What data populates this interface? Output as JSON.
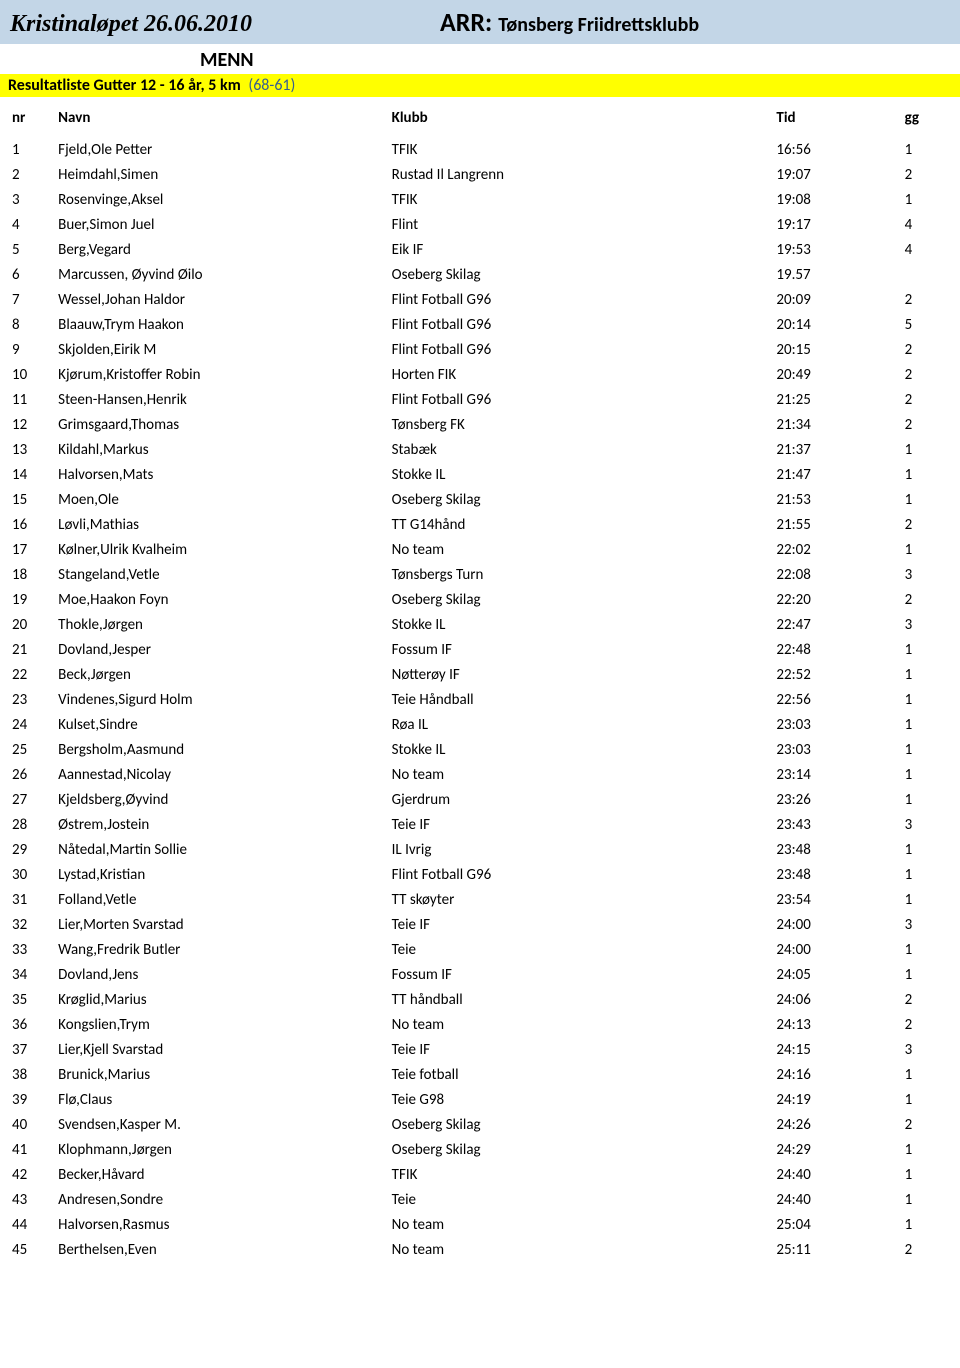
{
  "header": {
    "event_title": "Kristinaløpet 26.06.2010",
    "arr_label": "ARR:",
    "arr_value": "Tønsberg Friidrettsklubb"
  },
  "gender": "MENN",
  "category": {
    "name": "Resultatliste Gutter 12 - 16 år, 5 km",
    "range": "(68-61)"
  },
  "columns": {
    "nr": "nr",
    "name": "Navn",
    "club": "Klubb",
    "time": "Tid",
    "gg": "gg"
  },
  "rows": [
    {
      "nr": "1",
      "name": "Fjeld,Ole Petter",
      "club": "TFIK",
      "time": "16:56",
      "gg": "1"
    },
    {
      "nr": "2",
      "name": "Heimdahl,Simen",
      "club": "Rustad Il Langrenn",
      "time": "19:07",
      "gg": "2"
    },
    {
      "nr": "3",
      "name": "Rosenvinge,Aksel",
      "club": "TFIK",
      "time": "19:08",
      "gg": "1"
    },
    {
      "nr": "4",
      "name": "Buer,Simon Juel",
      "club": "Flint",
      "time": "19:17",
      "gg": "4"
    },
    {
      "nr": "5",
      "name": "Berg,Vegard",
      "club": "Eik IF",
      "time": "19:53",
      "gg": "4"
    },
    {
      "nr": "6",
      "name": "Marcussen, Øyvind Øilo",
      "club": "Oseberg Skilag",
      "time": "19.57",
      "gg": ""
    },
    {
      "nr": "7",
      "name": "Wessel,Johan Haldor",
      "club": "Flint Fotball G96",
      "time": "20:09",
      "gg": "2"
    },
    {
      "nr": "8",
      "name": "Blaauw,Trym Haakon",
      "club": "Flint Fotball G96",
      "time": "20:14",
      "gg": "5"
    },
    {
      "nr": "9",
      "name": "Skjolden,Eirik M",
      "club": "Flint Fotball G96",
      "time": "20:15",
      "gg": "2"
    },
    {
      "nr": "10",
      "name": "Kjørum,Kristoffer Robin",
      "club": "Horten FIK",
      "time": "20:49",
      "gg": "2"
    },
    {
      "nr": "11",
      "name": "Steen-Hansen,Henrik",
      "club": "Flint Fotball G96",
      "time": "21:25",
      "gg": "2"
    },
    {
      "nr": "12",
      "name": "Grimsgaard,Thomas",
      "club": "Tønsberg FK",
      "time": "21:34",
      "gg": "2"
    },
    {
      "nr": "13",
      "name": "Kildahl,Markus",
      "club": "Stabæk",
      "time": "21:37",
      "gg": "1"
    },
    {
      "nr": "14",
      "name": "Halvorsen,Mats",
      "club": "Stokke IL",
      "time": "21:47",
      "gg": "1"
    },
    {
      "nr": "15",
      "name": "Moen,Ole",
      "club": "Oseberg Skilag",
      "time": "21:53",
      "gg": "1"
    },
    {
      "nr": "16",
      "name": "Løvli,Mathias",
      "club": "TT G14hånd",
      "time": "21:55",
      "gg": "2"
    },
    {
      "nr": "17",
      "name": "Kølner,Ulrik Kvalheim",
      "club": "No team",
      "time": "22:02",
      "gg": "1"
    },
    {
      "nr": "18",
      "name": "Stangeland,Vetle",
      "club": "Tønsbergs Turn",
      "time": "22:08",
      "gg": "3"
    },
    {
      "nr": "19",
      "name": "Moe,Haakon Foyn",
      "club": "Oseberg Skilag",
      "time": "22:20",
      "gg": "2"
    },
    {
      "nr": "20",
      "name": "Thokle,Jørgen",
      "club": "Stokke IL",
      "time": "22:47",
      "gg": "3"
    },
    {
      "nr": "21",
      "name": "Dovland,Jesper",
      "club": "Fossum IF",
      "time": "22:48",
      "gg": "1"
    },
    {
      "nr": "22",
      "name": "Beck,Jørgen",
      "club": "Nøtterøy IF",
      "time": "22:52",
      "gg": "1"
    },
    {
      "nr": "23",
      "name": "Vindenes,Sigurd Holm",
      "club": "Teie Håndball",
      "time": "22:56",
      "gg": "1"
    },
    {
      "nr": "24",
      "name": "Kulset,Sindre",
      "club": "Røa IL",
      "time": "23:03",
      "gg": "1"
    },
    {
      "nr": "25",
      "name": "Bergsholm,Aasmund",
      "club": "Stokke IL",
      "time": "23:03",
      "gg": "1"
    },
    {
      "nr": "26",
      "name": "Aannestad,Nicolay",
      "club": "No team",
      "time": "23:14",
      "gg": "1"
    },
    {
      "nr": "27",
      "name": "Kjeldsberg,Øyvind",
      "club": "Gjerdrum",
      "time": "23:26",
      "gg": "1"
    },
    {
      "nr": "28",
      "name": "Østrem,Jostein",
      "club": "Teie IF",
      "time": "23:43",
      "gg": "3"
    },
    {
      "nr": "29",
      "name": "Nåtedal,Martin Sollie",
      "club": "IL Ivrig",
      "time": "23:48",
      "gg": "1"
    },
    {
      "nr": "30",
      "name": "Lystad,Kristian",
      "club": "Flint Fotball G96",
      "time": "23:48",
      "gg": "1"
    },
    {
      "nr": "31",
      "name": "Folland,Vetle",
      "club": "TT skøyter",
      "time": "23:54",
      "gg": "1"
    },
    {
      "nr": "32",
      "name": "Lier,Morten Svarstad",
      "club": "Teie IF",
      "time": "24:00",
      "gg": "3"
    },
    {
      "nr": "33",
      "name": "Wang,Fredrik Butler",
      "club": "Teie",
      "time": "24:00",
      "gg": "1"
    },
    {
      "nr": "34",
      "name": "Dovland,Jens",
      "club": "Fossum IF",
      "time": "24:05",
      "gg": "1"
    },
    {
      "nr": "35",
      "name": "Krøglid,Marius",
      "club": "TT håndball",
      "time": "24:06",
      "gg": "2"
    },
    {
      "nr": "36",
      "name": "Kongslien,Trym",
      "club": "No team",
      "time": "24:13",
      "gg": "2"
    },
    {
      "nr": "37",
      "name": "Lier,Kjell Svarstad",
      "club": "Teie IF",
      "time": "24:15",
      "gg": "3"
    },
    {
      "nr": "38",
      "name": "Brunick,Marius",
      "club": "Teie fotball",
      "time": "24:16",
      "gg": "1"
    },
    {
      "nr": "39",
      "name": "Flø,Claus",
      "club": "Teie G98",
      "time": "24:19",
      "gg": "1"
    },
    {
      "nr": "40",
      "name": "Svendsen,Kasper M.",
      "club": "Oseberg Skilag",
      "time": "24:26",
      "gg": "2"
    },
    {
      "nr": "41",
      "name": "Klophmann,Jørgen",
      "club": "Oseberg Skilag",
      "time": "24:29",
      "gg": "1"
    },
    {
      "nr": "42",
      "name": "Becker,Håvard",
      "club": "TFIK",
      "time": "24:40",
      "gg": "1"
    },
    {
      "nr": "43",
      "name": "Andresen,Sondre",
      "club": "Teie",
      "time": "24:40",
      "gg": "1"
    },
    {
      "nr": "44",
      "name": "Halvorsen,Rasmus",
      "club": "No team",
      "time": "25:04",
      "gg": "1"
    },
    {
      "nr": "45",
      "name": "Berthelsen,Even",
      "club": "No team",
      "time": "25:11",
      "gg": "2"
    }
  ],
  "colors": {
    "header_bg": "#c3d6e7",
    "category_bg": "#ffff00",
    "range_text": "#365f91"
  }
}
